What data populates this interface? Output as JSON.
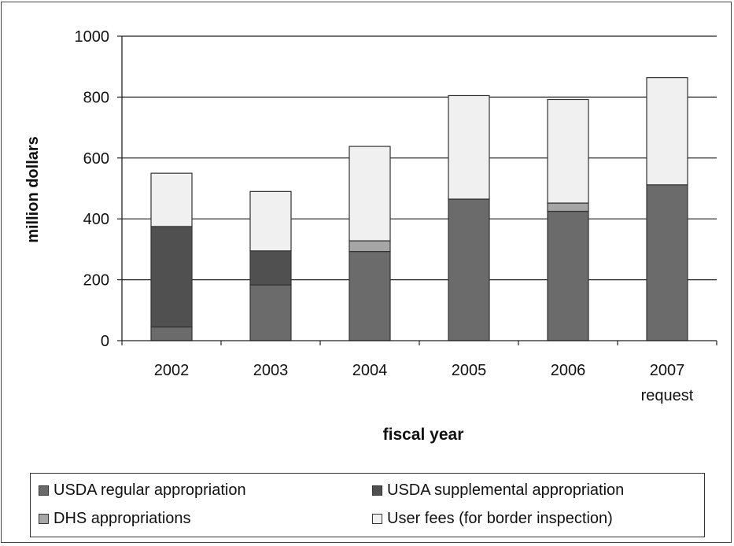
{
  "chart_data": {
    "type": "bar",
    "stacked": true,
    "xlabel": "fiscal year",
    "ylabel": "million dollars",
    "ylim": [
      0,
      1000
    ],
    "yticks": [
      0,
      200,
      400,
      600,
      800,
      1000
    ],
    "grid": true,
    "legend_position": "bottom",
    "categories": [
      "2002",
      "2003",
      "2004",
      "2005",
      "2006",
      "2007"
    ],
    "category_sublabels": [
      "",
      "",
      "",
      "",
      "",
      "request"
    ],
    "series": [
      {
        "name": "USDA regular appropriation",
        "color": "#6b6b6b",
        "values": [
          45,
          183,
          293,
          465,
          425,
          512
        ]
      },
      {
        "name": "USDA supplemental appropriation",
        "color": "#505050",
        "values": [
          330,
          112,
          0,
          0,
          0,
          0
        ]
      },
      {
        "name": "DHS appropriations",
        "color": "#a6a6a6",
        "values": [
          0,
          0,
          35,
          0,
          27,
          0
        ]
      },
      {
        "name": "User fees (for border inspection)",
        "color": "#f0f0f0",
        "values": [
          175,
          195,
          310,
          340,
          340,
          352
        ]
      }
    ]
  }
}
